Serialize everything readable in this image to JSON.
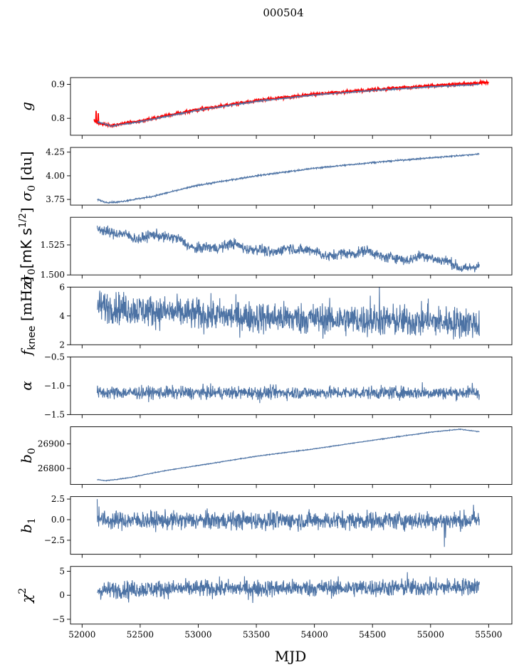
{
  "figure": {
    "suptitle": "000504",
    "xlabel": "MJD"
  },
  "colors": {
    "series": "#4c72a4",
    "overlay": "#ff0000",
    "axes": "#000000"
  },
  "chart_data": {
    "type": "line",
    "title": "000504",
    "xlabel": "MJD",
    "xlim": [
      51900,
      55700
    ],
    "xticks": [
      52000,
      52500,
      53000,
      53500,
      54000,
      54500,
      55000,
      55500
    ],
    "xdata_range": [
      52120,
      55420
    ],
    "panels": [
      {
        "ylabel": "g",
        "ylim": [
          0.75,
          0.92
        ],
        "yticks": [
          {
            "v": 0.8,
            "label": "0.8"
          },
          {
            "v": 0.9,
            "label": "0.9"
          }
        ],
        "series": [
          {
            "color": "red",
            "x_range": [
              52100,
              55500
            ],
            "noise": 0.002,
            "trend": [
              [
                52100,
                0.795
              ],
              [
                52150,
                0.785
              ],
              [
                52250,
                0.778
              ],
              [
                52500,
                0.792
              ],
              [
                53000,
                0.826
              ],
              [
                53500,
                0.852
              ],
              [
                54000,
                0.871
              ],
              [
                54500,
                0.884
              ],
              [
                55000,
                0.896
              ],
              [
                55500,
                0.906
              ]
            ],
            "spikes": [
              [
                52120,
                0.822
              ],
              [
                52130,
                0.79
              ],
              [
                52140,
                0.815
              ]
            ]
          },
          {
            "color": "blue",
            "x_range": [
              52130,
              55420
            ],
            "noise": 0.001,
            "trend": [
              [
                52130,
                0.79
              ],
              [
                52250,
                0.777
              ],
              [
                52500,
                0.79
              ],
              [
                53000,
                0.824
              ],
              [
                53500,
                0.85
              ],
              [
                54000,
                0.869
              ],
              [
                54500,
                0.882
              ],
              [
                55000,
                0.893
              ],
              [
                55420,
                0.9
              ]
            ]
          }
        ]
      },
      {
        "ylabel": "σ0 [du]",
        "ylim": [
          3.69,
          4.3
        ],
        "yticks": [
          {
            "v": 3.75,
            "label": "3.75"
          },
          {
            "v": 4.0,
            "label": "4.00"
          },
          {
            "v": 4.25,
            "label": "4.25"
          }
        ],
        "series": [
          {
            "color": "blue",
            "x_range": [
              52130,
              55420
            ],
            "noise": 0.004,
            "trend": [
              [
                52130,
                3.75
              ],
              [
                52200,
                3.72
              ],
              [
                52300,
                3.72
              ],
              [
                52600,
                3.78
              ],
              [
                53000,
                3.9
              ],
              [
                53500,
                4.0
              ],
              [
                54000,
                4.08
              ],
              [
                54500,
                4.14
              ],
              [
                55000,
                4.19
              ],
              [
                55420,
                4.23
              ]
            ]
          }
        ]
      },
      {
        "ylabel": "σ0[mK s^1/2]",
        "ylim": [
          1.5,
          1.548
        ],
        "yticks": [
          {
            "v": 1.5,
            "label": "1.500"
          },
          {
            "v": 1.525,
            "label": "1.525"
          }
        ],
        "series": [
          {
            "color": "blue",
            "x_range": [
              52130,
              55420
            ],
            "noise": 0.0022,
            "wave": 0.002,
            "trend": [
              [
                52130,
                1.535
              ],
              [
                52250,
                1.535
              ],
              [
                52700,
                1.531
              ],
              [
                53000,
                1.524
              ],
              [
                53500,
                1.522
              ],
              [
                54000,
                1.519
              ],
              [
                54500,
                1.517
              ],
              [
                55000,
                1.513
              ],
              [
                55420,
                1.506
              ]
            ],
            "spikes": [
              [
                52130,
                1.541
              ]
            ]
          }
        ]
      },
      {
        "ylabel": "fknee [mHz]",
        "ylim": [
          2,
          6
        ],
        "yticks": [
          {
            "v": 2,
            "label": "2"
          },
          {
            "v": 4,
            "label": "4"
          },
          {
            "v": 6,
            "label": "6"
          }
        ],
        "series": [
          {
            "color": "blue",
            "x_range": [
              52130,
              55420
            ],
            "noise": 0.55,
            "trend": [
              [
                52130,
                4.7
              ],
              [
                52500,
                4.4
              ],
              [
                53000,
                4.1
              ],
              [
                53500,
                3.9
              ],
              [
                54000,
                3.8
              ],
              [
                54500,
                3.7
              ],
              [
                55000,
                3.6
              ],
              [
                55420,
                3.5
              ]
            ],
            "spikes": [
              [
                54560,
                6.0
              ],
              [
                54480,
                5.4
              ],
              [
                54980,
                5.2
              ],
              [
                55410,
                2.7
              ]
            ]
          }
        ]
      },
      {
        "ylabel": "α",
        "ylim": [
          -1.5,
          -0.5
        ],
        "yticks": [
          {
            "v": -1.5,
            "label": "−1.5"
          },
          {
            "v": -1.0,
            "label": "−1.0"
          },
          {
            "v": -0.5,
            "label": "−0.5"
          }
        ],
        "series": [
          {
            "color": "blue",
            "x_range": [
              52130,
              55420
            ],
            "noise": 0.055,
            "trend": [
              [
                52130,
                -1.12
              ],
              [
                55420,
                -1.12
              ]
            ],
            "spikes": [
              [
                53530,
                -1.3
              ],
              [
                54930,
                -0.94
              ],
              [
                55360,
                -0.95
              ]
            ]
          }
        ]
      },
      {
        "ylabel": "b0",
        "ylim": [
          26735,
          26970
        ],
        "yticks": [
          {
            "v": 26800,
            "label": "26800"
          },
          {
            "v": 26900,
            "label": "26900"
          }
        ],
        "series": [
          {
            "color": "blue",
            "x_range": [
              52130,
              55420
            ],
            "noise": 0.8,
            "trend": [
              [
                52130,
                26755
              ],
              [
                52200,
                26750
              ],
              [
                52400,
                26762
              ],
              [
                52700,
                26790
              ],
              [
                53000,
                26812
              ],
              [
                53500,
                26850
              ],
              [
                54000,
                26880
              ],
              [
                54500,
                26915
              ],
              [
                55000,
                26948
              ],
              [
                55250,
                26960
              ],
              [
                55420,
                26950
              ]
            ]
          }
        ]
      },
      {
        "ylabel": "b1",
        "ylim": [
          -4.2,
          2.8
        ],
        "yticks": [
          {
            "v": -2.5,
            "label": "−2.5"
          },
          {
            "v": 0.0,
            "label": "0.0"
          },
          {
            "v": 2.5,
            "label": "2.5"
          }
        ],
        "series": [
          {
            "color": "blue",
            "x_range": [
              52130,
              55420
            ],
            "noise": 0.55,
            "trend": [
              [
                52130,
                0.3
              ],
              [
                52200,
                -0.1
              ],
              [
                55420,
                -0.1
              ]
            ],
            "spikes": [
              [
                52130,
                2.5
              ],
              [
                52145,
                1.6
              ],
              [
                55120,
                -3.3
              ],
              [
                55370,
                1.8
              ],
              [
                55130,
                -2.2
              ]
            ]
          }
        ]
      },
      {
        "ylabel": "χ2",
        "ylim": [
          -6,
          6
        ],
        "yticks": [
          {
            "v": -5,
            "label": "−5"
          },
          {
            "v": 0,
            "label": "0"
          },
          {
            "v": 5,
            "label": "5"
          }
        ],
        "series": [
          {
            "color": "blue",
            "x_range": [
              52130,
              55420
            ],
            "noise": 0.9,
            "trend": [
              [
                52130,
                1.0
              ],
              [
                52500,
                1.3
              ],
              [
                53000,
                1.4
              ],
              [
                54000,
                1.5
              ],
              [
                55000,
                1.6
              ],
              [
                55420,
                1.9
              ]
            ],
            "spikes": [
              [
                54800,
                4.8
              ],
              [
                53470,
                -1.6
              ],
              [
                52400,
                -1.5
              ]
            ]
          }
        ]
      }
    ]
  }
}
